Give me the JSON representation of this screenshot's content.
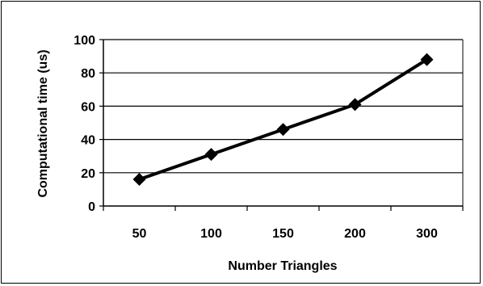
{
  "chart_data": {
    "type": "line",
    "title": "",
    "xlabel": "Number Triangles",
    "ylabel": "Computational time (us)",
    "categories": [
      "50",
      "100",
      "150",
      "200",
      "300"
    ],
    "series": [
      {
        "values": [
          16,
          31,
          46,
          61,
          88
        ]
      }
    ],
    "ylim": [
      0,
      100
    ],
    "yticks": [
      0,
      20,
      40,
      60,
      80,
      100
    ],
    "grid": "horizontal",
    "legend": "none",
    "line_color": "#000000",
    "marker": "diamond"
  }
}
